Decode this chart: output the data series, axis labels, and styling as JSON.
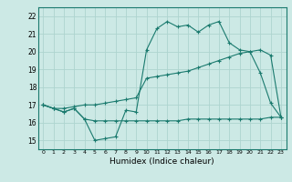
{
  "bg_color": "#cce9e5",
  "line_color": "#1a7a6e",
  "grid_color": "#aed4cf",
  "xlabel": "Humidex (Indice chaleur)",
  "xlim": [
    -0.5,
    23.5
  ],
  "ylim": [
    14.5,
    22.5
  ],
  "xticks": [
    0,
    1,
    2,
    3,
    4,
    5,
    6,
    7,
    8,
    9,
    10,
    11,
    12,
    13,
    14,
    15,
    16,
    17,
    18,
    19,
    20,
    21,
    22,
    23
  ],
  "yticks": [
    15,
    16,
    17,
    18,
    19,
    20,
    21,
    22
  ],
  "series1_x": [
    0,
    1,
    2,
    3,
    4,
    5,
    6,
    7,
    8,
    9,
    10,
    11,
    12,
    13,
    14,
    15,
    16,
    17,
    18,
    19,
    20,
    21,
    22,
    23
  ],
  "series1_y": [
    17.0,
    16.8,
    16.6,
    16.8,
    16.2,
    15.0,
    15.1,
    15.2,
    16.7,
    16.6,
    20.1,
    21.3,
    21.7,
    21.4,
    21.5,
    21.1,
    21.5,
    21.7,
    20.5,
    20.1,
    20.0,
    18.8,
    17.1,
    16.3
  ],
  "series2_x": [
    0,
    1,
    2,
    3,
    4,
    5,
    6,
    7,
    8,
    9,
    10,
    11,
    12,
    13,
    14,
    15,
    16,
    17,
    18,
    19,
    20,
    21,
    22,
    23
  ],
  "series2_y": [
    17.0,
    16.8,
    16.8,
    16.9,
    17.0,
    17.0,
    17.1,
    17.2,
    17.3,
    17.4,
    18.5,
    18.6,
    18.7,
    18.8,
    18.9,
    19.1,
    19.3,
    19.5,
    19.7,
    19.9,
    20.0,
    20.1,
    19.8,
    16.3
  ],
  "series3_x": [
    0,
    1,
    2,
    3,
    4,
    5,
    6,
    7,
    8,
    9,
    10,
    11,
    12,
    13,
    14,
    15,
    16,
    17,
    18,
    19,
    20,
    21,
    22,
    23
  ],
  "series3_y": [
    17.0,
    16.8,
    16.6,
    16.8,
    16.2,
    16.1,
    16.1,
    16.1,
    16.1,
    16.1,
    16.1,
    16.1,
    16.1,
    16.1,
    16.2,
    16.2,
    16.2,
    16.2,
    16.2,
    16.2,
    16.2,
    16.2,
    16.3,
    16.3
  ]
}
